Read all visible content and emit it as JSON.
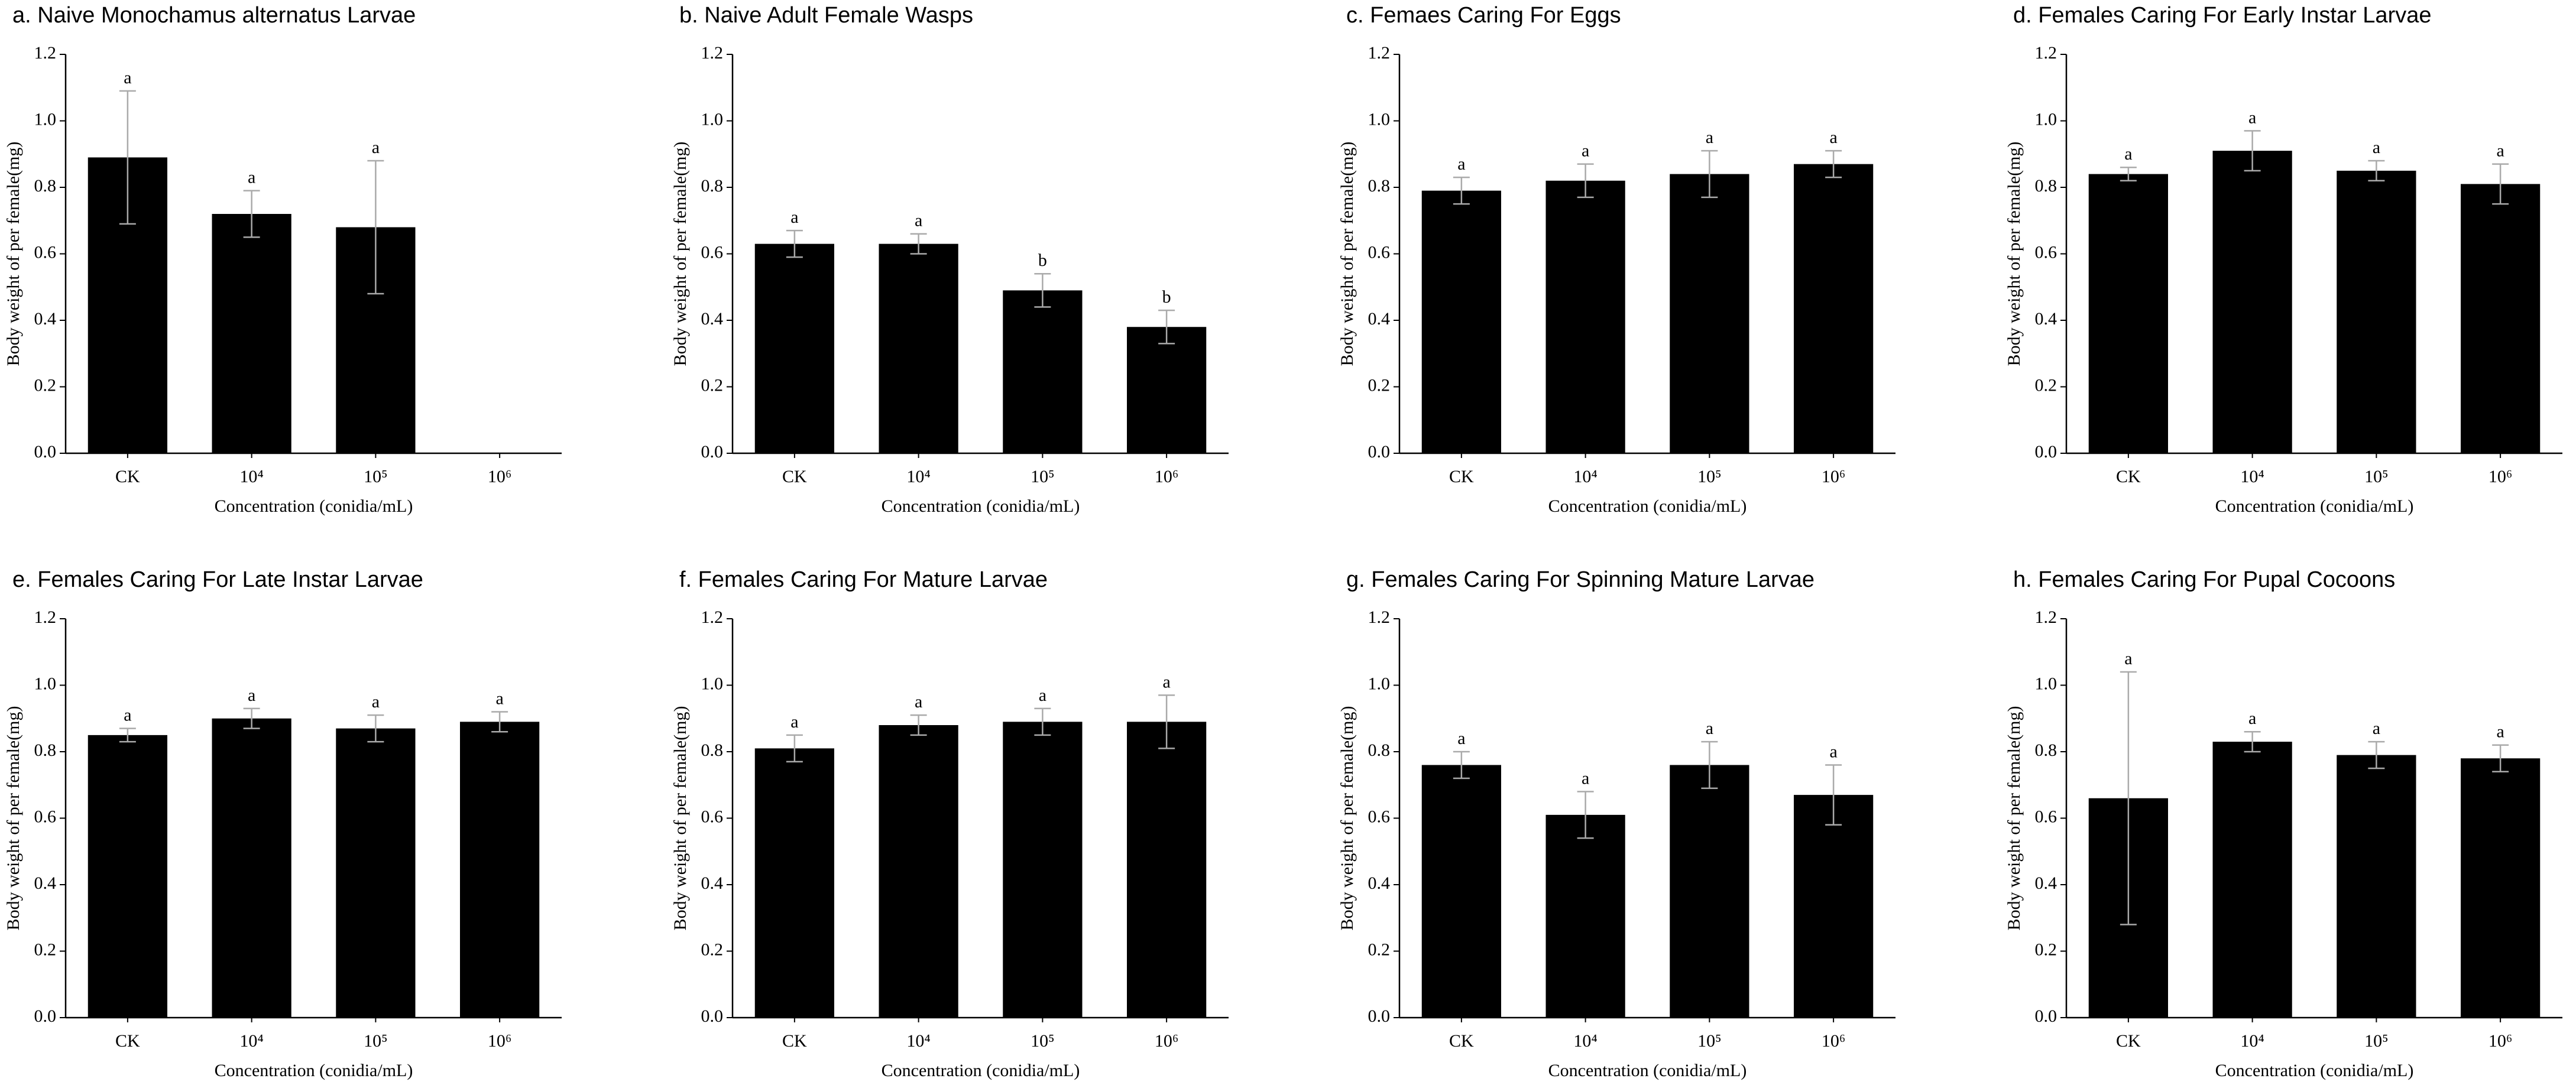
{
  "chart_data": [
    {
      "type": "bar",
      "title": "a. Naive Monochamus alternatus Larvae",
      "xlabel": "Concentration (conidia/mL)",
      "ylabel": "Body weight of per female(mg)",
      "categories": [
        "CK",
        "10⁴",
        "10⁵",
        "10⁶"
      ],
      "values": [
        0.89,
        0.72,
        0.68,
        null
      ],
      "errors": [
        0.2,
        0.07,
        0.2,
        null
      ],
      "letters": [
        "a",
        "a",
        "a",
        null
      ],
      "color": "#000000",
      "ylim": [
        0,
        1.2
      ],
      "yticks": [
        {
          "value": 0,
          "label": "0.0"
        },
        {
          "value": 0.2,
          "label": "0.2"
        },
        {
          "value": 0.4,
          "label": "0.4"
        },
        {
          "value": 0.6,
          "label": "0.6"
        },
        {
          "value": 0.8,
          "label": "0.8"
        },
        {
          "value": 1,
          "label": "1.0"
        },
        {
          "value": 1.2,
          "label": "1.2"
        }
      ]
    },
    {
      "type": "bar",
      "title": "b. Naive Adult Female Wasps",
      "xlabel": "Concentration (conidia/mL)",
      "ylabel": "Body weight of per female(mg)",
      "categories": [
        "CK",
        "10⁴",
        "10⁵",
        "10⁶"
      ],
      "values": [
        0.63,
        0.63,
        0.49,
        0.38
      ],
      "errors": [
        0.04,
        0.03,
        0.05,
        0.05
      ],
      "letters": [
        "a",
        "a",
        "b",
        "b"
      ],
      "color": "#000000",
      "ylim": [
        0,
        1.2
      ],
      "yticks": [
        {
          "value": 0,
          "label": "0.0"
        },
        {
          "value": 0.2,
          "label": "0.2"
        },
        {
          "value": 0.4,
          "label": "0.4"
        },
        {
          "value": 0.6,
          "label": "0.6"
        },
        {
          "value": 0.8,
          "label": "0.8"
        },
        {
          "value": 1,
          "label": "1.0"
        },
        {
          "value": 1.2,
          "label": "1.2"
        }
      ]
    },
    {
      "type": "bar",
      "title": "c. Femaes Caring For Eggs",
      "xlabel": "Concentration (conidia/mL)",
      "ylabel": "Body weight of per female(mg)",
      "categories": [
        "CK",
        "10⁴",
        "10⁵",
        "10⁶"
      ],
      "values": [
        0.79,
        0.82,
        0.84,
        0.87
      ],
      "errors": [
        0.04,
        0.05,
        0.07,
        0.04
      ],
      "letters": [
        "a",
        "a",
        "a",
        "a"
      ],
      "color": "#000000",
      "ylim": [
        0,
        1.2
      ],
      "yticks": [
        {
          "value": 0,
          "label": "0.0"
        },
        {
          "value": 0.2,
          "label": "0.2"
        },
        {
          "value": 0.4,
          "label": "0.4"
        },
        {
          "value": 0.6,
          "label": "0.6"
        },
        {
          "value": 0.8,
          "label": "0.8"
        },
        {
          "value": 1,
          "label": "1.0"
        },
        {
          "value": 1.2,
          "label": "1.2"
        }
      ]
    },
    {
      "type": "bar",
      "title": "d. Females Caring For Early Instar Larvae",
      "xlabel": "Concentration (conidia/mL)",
      "ylabel": "Body weight of per female(mg)",
      "categories": [
        "CK",
        "10⁴",
        "10⁵",
        "10⁶"
      ],
      "values": [
        0.84,
        0.91,
        0.85,
        0.81
      ],
      "errors": [
        0.02,
        0.06,
        0.03,
        0.06
      ],
      "letters": [
        "a",
        "a",
        "a",
        "a"
      ],
      "color": "#000000",
      "ylim": [
        0,
        1.2
      ],
      "yticks": [
        {
          "value": 0,
          "label": "0.0"
        },
        {
          "value": 0.2,
          "label": "0.2"
        },
        {
          "value": 0.4,
          "label": "0.4"
        },
        {
          "value": 0.6,
          "label": "0.6"
        },
        {
          "value": 0.8,
          "label": "0.8"
        },
        {
          "value": 1,
          "label": "1.0"
        },
        {
          "value": 1.2,
          "label": "1.2"
        }
      ]
    },
    {
      "type": "bar",
      "title": "e. Females Caring For Late Instar Larvae",
      "xlabel": "Concentration (conidia/mL)",
      "ylabel": "Body weight of per female(mg)",
      "categories": [
        "CK",
        "10⁴",
        "10⁵",
        "10⁶"
      ],
      "values": [
        0.85,
        0.9,
        0.87,
        0.89
      ],
      "errors": [
        0.02,
        0.03,
        0.04,
        0.03
      ],
      "letters": [
        "a",
        "a",
        "a",
        "a"
      ],
      "color": "#000000",
      "ylim": [
        0,
        1.2
      ],
      "yticks": [
        {
          "value": 0,
          "label": "0.0"
        },
        {
          "value": 0.2,
          "label": "0.2"
        },
        {
          "value": 0.4,
          "label": "0.4"
        },
        {
          "value": 0.6,
          "label": "0.6"
        },
        {
          "value": 0.8,
          "label": "0.8"
        },
        {
          "value": 1,
          "label": "1.0"
        },
        {
          "value": 1.2,
          "label": "1.2"
        }
      ]
    },
    {
      "type": "bar",
      "title": "f. Females Caring For Mature Larvae",
      "xlabel": "Concentration (conidia/mL)",
      "ylabel": "Body weight of per female(mg)",
      "categories": [
        "CK",
        "10⁴",
        "10⁵",
        "10⁶"
      ],
      "values": [
        0.81,
        0.88,
        0.89,
        0.89
      ],
      "errors": [
        0.04,
        0.03,
        0.04,
        0.08
      ],
      "letters": [
        "a",
        "a",
        "a",
        "a"
      ],
      "color": "#000000",
      "ylim": [
        0,
        1.2
      ],
      "yticks": [
        {
          "value": 0,
          "label": "0.0"
        },
        {
          "value": 0.2,
          "label": "0.2"
        },
        {
          "value": 0.4,
          "label": "0.4"
        },
        {
          "value": 0.6,
          "label": "0.6"
        },
        {
          "value": 0.8,
          "label": "0.8"
        },
        {
          "value": 1,
          "label": "1.0"
        },
        {
          "value": 1.2,
          "label": "1.2"
        }
      ]
    },
    {
      "type": "bar",
      "title": "g. Females Caring For Spinning Mature Larvae",
      "xlabel": "Concentration (conidia/mL)",
      "ylabel": "Body weight of per female(mg)",
      "categories": [
        "CK",
        "10⁴",
        "10⁵",
        "10⁶"
      ],
      "values": [
        0.76,
        0.61,
        0.76,
        0.67
      ],
      "errors": [
        0.04,
        0.07,
        0.07,
        0.09
      ],
      "letters": [
        "a",
        "a",
        "a",
        "a"
      ],
      "color": "#000000",
      "ylim": [
        0,
        1.2
      ],
      "yticks": [
        {
          "value": 0,
          "label": "0.0"
        },
        {
          "value": 0.2,
          "label": "0.2"
        },
        {
          "value": 0.4,
          "label": "0.4"
        },
        {
          "value": 0.6,
          "label": "0.6"
        },
        {
          "value": 0.8,
          "label": "0.8"
        },
        {
          "value": 1,
          "label": "1.0"
        },
        {
          "value": 1.2,
          "label": "1.2"
        }
      ]
    },
    {
      "type": "bar",
      "title": "h. Females Caring For Pupal Cocoons",
      "xlabel": "Concentration (conidia/mL)",
      "ylabel": "Body weight of per female(mg)",
      "categories": [
        "CK",
        "10⁴",
        "10⁵",
        "10⁶"
      ],
      "values": [
        0.66,
        0.83,
        0.79,
        0.78
      ],
      "errors": [
        0.38,
        0.03,
        0.04,
        0.04
      ],
      "letters": [
        "a",
        "a",
        "a",
        "a"
      ],
      "color": "#000000",
      "ylim": [
        0,
        1.2
      ],
      "yticks": [
        {
          "value": 0,
          "label": "0.0"
        },
        {
          "value": 0.2,
          "label": "0.2"
        },
        {
          "value": 0.4,
          "label": "0.4"
        },
        {
          "value": 0.6,
          "label": "0.6"
        },
        {
          "value": 0.8,
          "label": "0.8"
        },
        {
          "value": 1,
          "label": "1.0"
        },
        {
          "value": 1.2,
          "label": "1.2"
        }
      ]
    }
  ]
}
